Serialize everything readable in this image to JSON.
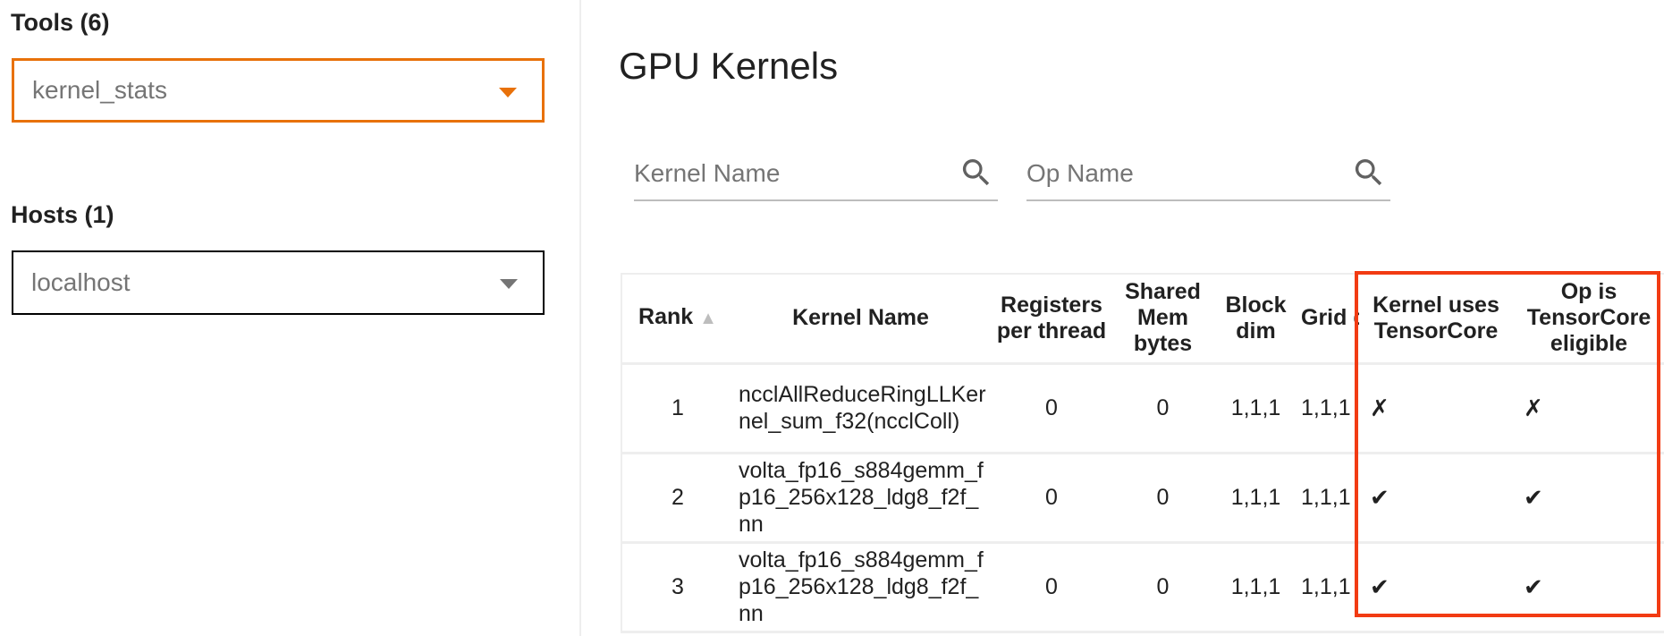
{
  "sidebar": {
    "tools_label": "Tools (6)",
    "tools_value": "kernel_stats",
    "hosts_label": "Hosts (1)",
    "hosts_value": "localhost",
    "accent": "#e8710a"
  },
  "main": {
    "title": "GPU Kernels",
    "kernel_search_placeholder": "Kernel Name",
    "op_search_placeholder": "Op Name"
  },
  "table": {
    "headers": [
      "Rank",
      "Kernel Name",
      "Registers per thread",
      "Shared Mem bytes",
      "Block dim",
      "Grid dim",
      "Kernel uses TensorCore",
      "Op is TensorCore eligible"
    ],
    "sort_indicator": "▲",
    "rows": [
      {
        "rank": "1",
        "kernel": "ncclAllReduceRingLLKernel_sum_f32(ncclColl)",
        "regs": "0",
        "shmem": "0",
        "block": "1,1,1",
        "grid": "1,1,1",
        "uses_tc": "✗",
        "eligible": "✗"
      },
      {
        "rank": "2",
        "kernel": "volta_fp16_s884gemm_fp16_256x128_ldg8_f2f_nn",
        "regs": "0",
        "shmem": "0",
        "block": "1,1,1",
        "grid": "1,1,1",
        "uses_tc": "✔",
        "eligible": "✔"
      },
      {
        "rank": "3",
        "kernel": "volta_fp16_s884gemm_fp16_256x128_ldg8_f2f_nn",
        "regs": "0",
        "shmem": "0",
        "block": "1,1,1",
        "grid": "1,1,1",
        "uses_tc": "✔",
        "eligible": "✔"
      }
    ]
  },
  "highlight_color": "#f23b13"
}
